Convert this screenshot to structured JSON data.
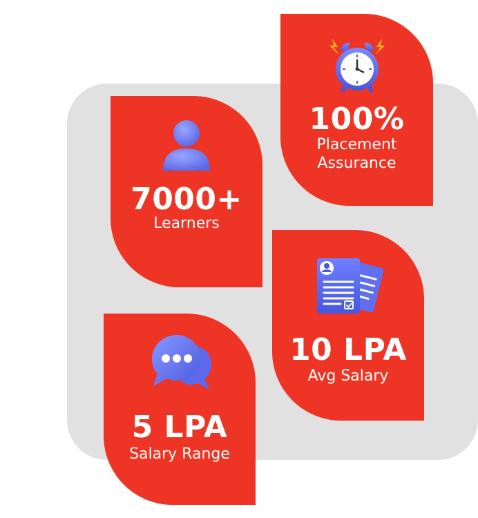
{
  "colors": {
    "card": "#ee3424",
    "panel": "#e1e1e1",
    "icon_blue": "#6b7bf0"
  },
  "stats": [
    {
      "value": "7000+",
      "label": "Learners",
      "icon": "user-icon"
    },
    {
      "value": "100%",
      "label_line1": "Placement",
      "label_line2": "Assurance",
      "icon": "alarm-clock-icon"
    },
    {
      "value": "10 LPA",
      "label": "Avg Salary",
      "icon": "resume-document-icon"
    },
    {
      "value": "5 LPA",
      "label": "Salary Range",
      "icon": "chat-bubbles-icon"
    }
  ]
}
